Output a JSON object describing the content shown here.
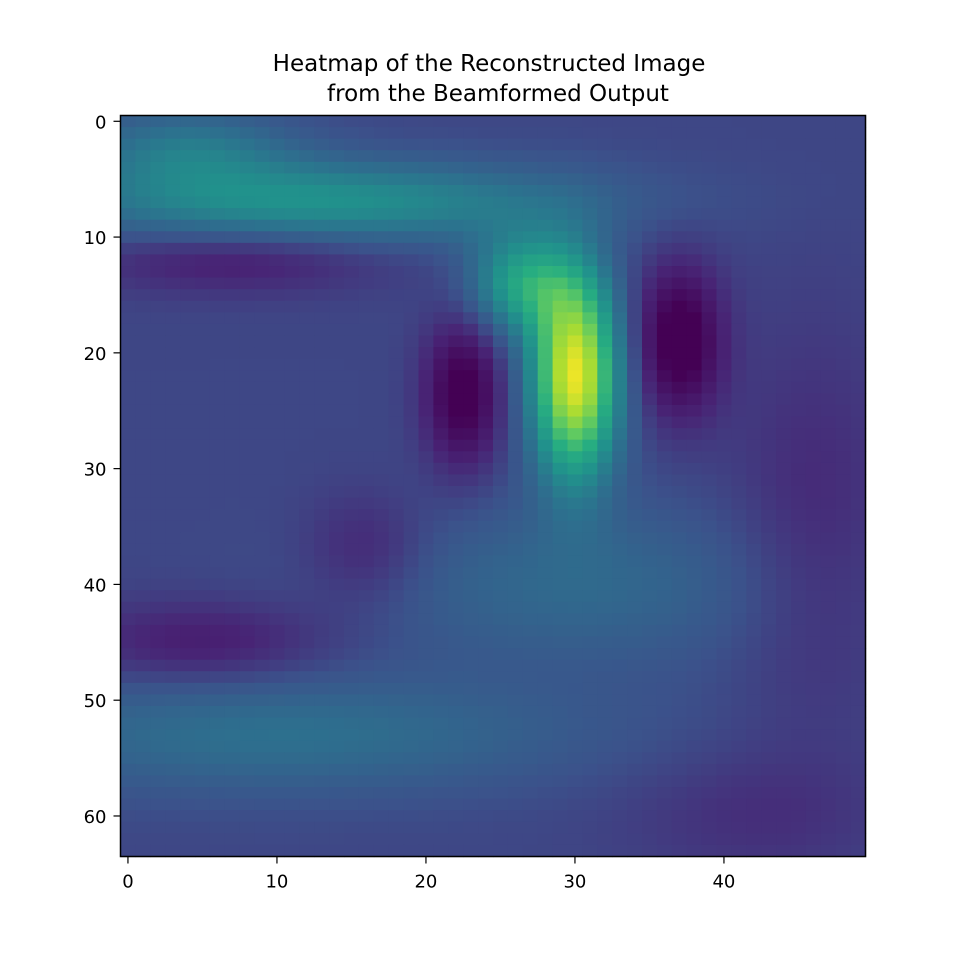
{
  "chart_data": {
    "type": "heatmap",
    "title_lines": [
      "Heatmap of the Reconstructed Image",
      "from the Beamformed Output"
    ],
    "xlabel": "",
    "ylabel": "",
    "columns": 50,
    "rows": 64,
    "xlim": [
      -0.5,
      49.5
    ],
    "ylim": [
      63.5,
      -0.5
    ],
    "x_ticks": [
      0,
      10,
      20,
      30,
      40
    ],
    "y_ticks": [
      0,
      10,
      20,
      30,
      40,
      50,
      60
    ],
    "colormap": "viridis",
    "value_range": [
      0,
      1
    ],
    "legend": "none",
    "grid": false,
    "features": [
      {
        "kind": "peak",
        "x": 30.0,
        "y": 22.0,
        "sx": 2.0,
        "sy": 6.0,
        "amp": 0.75
      },
      {
        "kind": "peak",
        "x": 26.5,
        "y": 14.0,
        "sx": 2.5,
        "sy": 3.0,
        "amp": 0.35
      },
      {
        "kind": "ridge",
        "x": 13.0,
        "y": 7.0,
        "sx": 12.0,
        "sy": 2.5,
        "amp": 0.28
      },
      {
        "kind": "ridge",
        "x": 4.0,
        "y": 2.5,
        "sx": 5.0,
        "sy": 2.5,
        "amp": 0.18
      },
      {
        "kind": "ridge",
        "x": 30.0,
        "y": 40.0,
        "sx": 10.0,
        "sy": 5.0,
        "amp": 0.12
      },
      {
        "kind": "ridge",
        "x": 10.0,
        "y": 53.0,
        "sx": 14.0,
        "sy": 3.5,
        "amp": 0.15
      },
      {
        "kind": "trough",
        "x": 22.5,
        "y": 23.5,
        "sx": 1.8,
        "sy": 4.5,
        "amp": -0.25
      },
      {
        "kind": "trough",
        "x": 37.0,
        "y": 19.0,
        "sx": 2.0,
        "sy": 4.5,
        "amp": -0.27
      },
      {
        "kind": "trough",
        "x": 7.0,
        "y": 12.0,
        "sx": 7.0,
        "sy": 2.0,
        "amp": -0.12
      },
      {
        "kind": "trough",
        "x": 5.0,
        "y": 45.0,
        "sx": 6.0,
        "sy": 2.5,
        "amp": -0.12
      },
      {
        "kind": "trough",
        "x": 16.0,
        "y": 37.0,
        "sx": 3.0,
        "sy": 3.5,
        "amp": -0.1
      },
      {
        "kind": "trough",
        "x": 46.0,
        "y": 35.0,
        "sx": 4.0,
        "sy": 12.0,
        "amp": -0.08
      },
      {
        "kind": "trough",
        "x": 42.0,
        "y": 60.0,
        "sx": 6.0,
        "sy": 4.0,
        "amp": -0.06
      }
    ],
    "baseline": 0.22
  }
}
